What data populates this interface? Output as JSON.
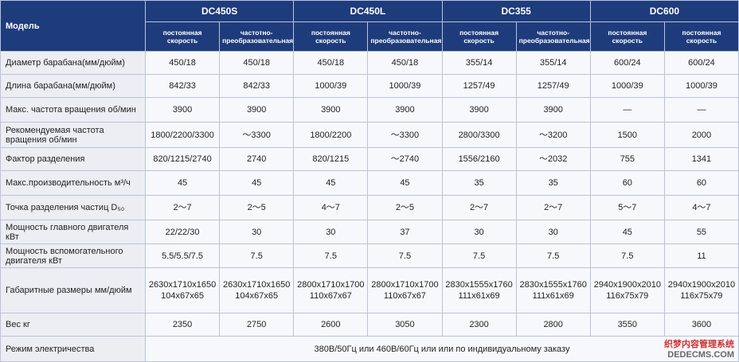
{
  "table": {
    "corner": "Модель",
    "models": [
      "DC450S",
      "DC450L",
      "DC355",
      "DC600"
    ],
    "subheaders": [
      "постоянная скорость",
      "частотно-преобразовательная",
      "постоянная скорость",
      "частотно-преобразовательная",
      "постоянная скорость",
      "частотно-преобразовательная",
      "постоянная скорость",
      "постоянная скорость"
    ],
    "rows": [
      {
        "label": "Диаметр барабана(мм/дюйм)",
        "values": [
          "450/18",
          "450/18",
          "450/18",
          "450/18",
          "355/14",
          "355/14",
          "600/24",
          "600/24"
        ]
      },
      {
        "label": "Длина барабана(мм/дюйм)",
        "values": [
          "842/33",
          "842/33",
          "1000/39",
          "1000/39",
          "1257/49",
          "1257/49",
          "1000/39",
          "1000/39"
        ]
      },
      {
        "label": "Макс. частота вращения об/мин",
        "values": [
          "3900",
          "3900",
          "3900",
          "3900",
          "3900",
          "3900",
          "—",
          "—"
        ]
      },
      {
        "label": "Рекомендуемая частота вращения об/мин",
        "values": [
          "1800/2200/3300",
          "～3300",
          "1800/2200",
          "～3300",
          "2800/3300",
          "～3200",
          "1500",
          "2000"
        ]
      },
      {
        "label": "Фактор разделения",
        "values": [
          "820/1215/2740",
          "2740",
          "820/1215",
          "～2740",
          "1556/2160",
          "～2032",
          "755",
          "1341"
        ]
      },
      {
        "label": "Макс.производительность м³/ч",
        "values": [
          "45",
          "45",
          "45",
          "45",
          "35",
          "35",
          "60",
          "60"
        ]
      },
      {
        "label": "Точка разделения частиц D₅₀",
        "values": [
          "2～7",
          "2～5",
          "4～7",
          "2～5",
          "2～7",
          "2～7",
          "5～7",
          "4～7"
        ]
      },
      {
        "label": "Мощность главного двигателя кВт",
        "values": [
          "22/22/30",
          "30",
          "30",
          "37",
          "30",
          "30",
          "45",
          "55"
        ]
      },
      {
        "label": "Мощность вспомогательного двигателя кВт",
        "values": [
          "5.5/5.5/7.5",
          "7.5",
          "7.5",
          "7.5",
          "7.5",
          "7.5",
          "7.5",
          "11"
        ]
      },
      {
        "label": "Габаритные размеры мм/дюйм",
        "values": [
          "2630x1710x1650 104x67x65",
          "2630x1710x1650 104x67x65",
          "2800x1710x1700 110x67x67",
          "2800x1710x1700 110x67x67",
          "2830x1555x1760 111x61x69",
          "2830x1555x1760 111x61x69",
          "2940x1900x2010 116x75x79",
          "2940x1900x2010 116x75x79"
        ]
      },
      {
        "label": "Вес кг",
        "values": [
          "2350",
          "2750",
          "2600",
          "3050",
          "2300",
          "2800",
          "3550",
          "3600"
        ]
      }
    ],
    "power": {
      "label": "Режим электричества",
      "value": "380В/50Гц или 460В/60Гц или или по индивидуальному заказу"
    }
  },
  "watermark": {
    "line1": "织梦内容管理系统",
    "line2": "DEDECMS.COM"
  }
}
